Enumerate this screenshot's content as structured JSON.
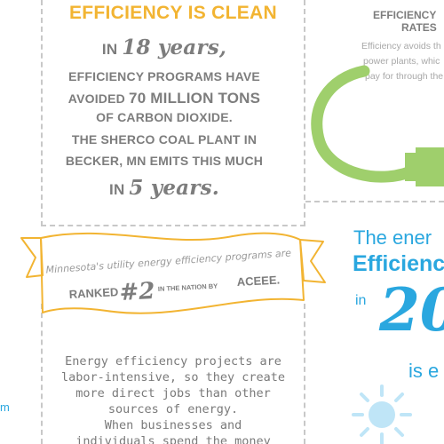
{
  "colors": {
    "orange": "#f2b432",
    "gray": "#7d7d7d",
    "green": "#9fcf6c",
    "blue": "#2aa7df",
    "light_blue": "#bfe5f7",
    "dash": "#c8c8c8"
  },
  "clean": {
    "title": "EFFICIENCY IS CLEAN",
    "line1_prefix": "IN",
    "line1_script": "18 years,",
    "line2": "EFFICIENCY PROGRAMS HAVE",
    "line3_prefix": "AVOIDED",
    "line3_bold": "70 MILLION TONS",
    "line4": "OF CARBON DIOXIDE.",
    "line5": "THE SHERCO COAL PLANT IN",
    "line6": "BECKER, MN EMITS THIS MUCH",
    "line7_prefix": "IN",
    "line7_script": "5 years."
  },
  "ribbon": {
    "line1": "Minnesota's utility energy efficiency programs are",
    "ranked_label": "RANKED",
    "ranked_value": "#2",
    "nation_label": "IN THE NATION BY",
    "acronym": "ACEEE."
  },
  "jobs": {
    "lines": [
      "Energy efficiency projects are",
      "labor-intensive, so they create",
      "more direct jobs than other",
      "sources of energy.",
      "When businesses and",
      "individuals spend the money"
    ]
  },
  "rates": {
    "title_line1": "EFFICIENCY",
    "title_line2": "RATES",
    "body_line1": "Efficiency avoids th",
    "body_line2": "power plants, whic",
    "body_line3": "pay for through the"
  },
  "blue_panel": {
    "line1": "The ener",
    "line2": "Efficienc",
    "line3_small": "in",
    "line3_big": "20",
    "line4": "is e"
  },
  "left_edge": {
    "text": "m"
  },
  "icons": {
    "plug": "power-plug-icon",
    "sun": "sun-icon"
  }
}
